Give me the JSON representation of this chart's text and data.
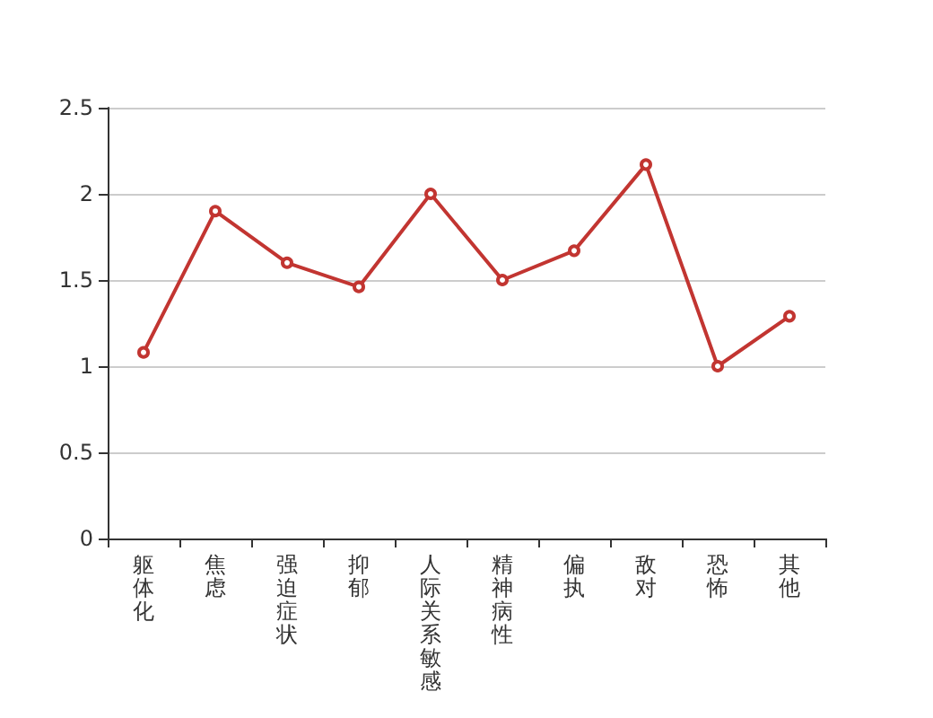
{
  "chart_data": {
    "type": "line",
    "categories": [
      "躯体化",
      "焦虑",
      "强迫症状",
      "抑郁",
      "人际关系敏感",
      "精神病性",
      "偏执",
      "敌对",
      "恐怖",
      "其他"
    ],
    "series": [
      {
        "color": "#c23531",
        "values": [
          1.08,
          1.9,
          1.6,
          1.46,
          2.0,
          1.5,
          1.67,
          2.17,
          1.0,
          1.29
        ]
      }
    ],
    "ylim": [
      0,
      2.5
    ],
    "yticks": [
      0,
      0.5,
      1,
      1.5,
      2,
      2.5
    ],
    "grid": "y",
    "marker": "circle",
    "line_style": "solid"
  }
}
